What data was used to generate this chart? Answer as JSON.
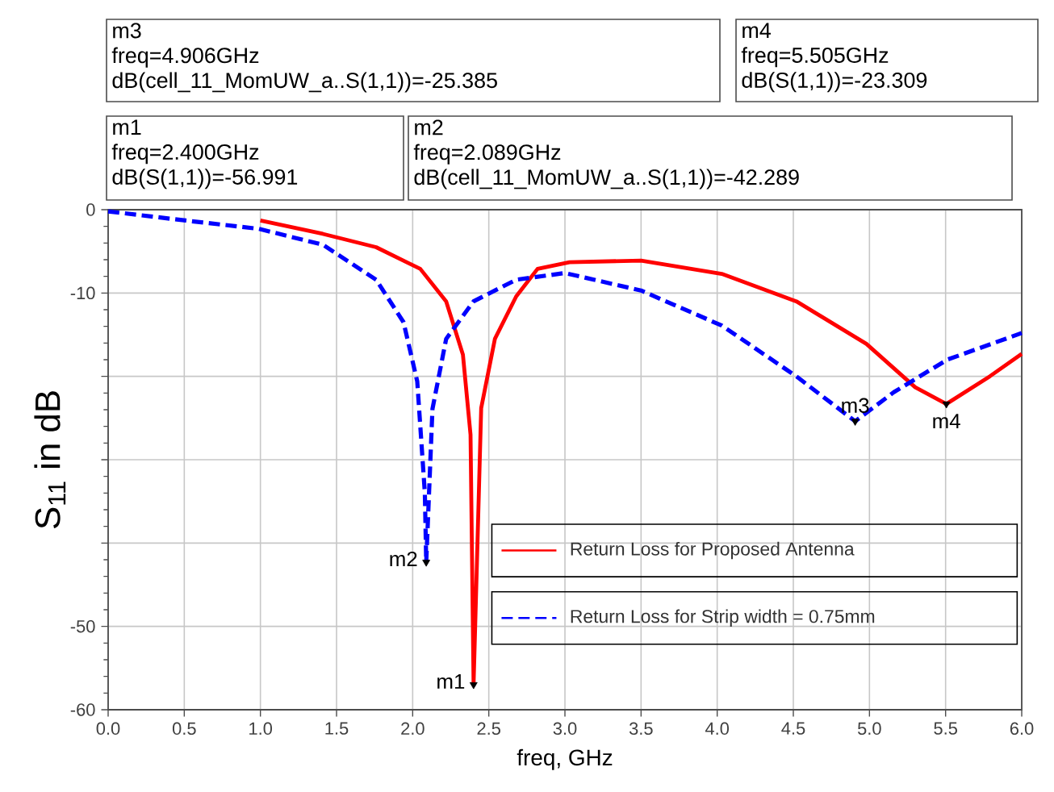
{
  "chart_data": {
    "type": "line",
    "xlabel": "freq, GHz",
    "ylabel": "S$_{11}$ in dB",
    "xlim": [
      0,
      6
    ],
    "ylim": [
      -60,
      0
    ],
    "xticks": [
      {
        "value": 0,
        "label": "0.0"
      },
      0.5,
      {
        "value": 1,
        "label": "1.0"
      },
      1.5,
      {
        "value": 2,
        "label": "2.0"
      },
      2.5,
      {
        "value": 3,
        "label": "3.0"
      },
      3.5,
      {
        "value": 4,
        "label": "4.0"
      },
      4.5,
      {
        "value": 5,
        "label": "5.0"
      },
      5.5,
      {
        "value": 6,
        "label": "6.0"
      }
    ],
    "yticks": [
      -60,
      -50,
      {
        "value": -40,
        "label": null
      },
      {
        "value": -30,
        "label": null
      },
      {
        "value": -20,
        "label": null
      },
      -10,
      0
    ],
    "grid": true,
    "legend": "bottom right",
    "marker": "none",
    "series": [
      {
        "name": "Return Loss for Proposed Antenna",
        "color": "#ff0000",
        "line_style": "solid",
        "x": [
          1.0,
          1.41,
          1.76,
          2.05,
          2.22,
          2.33,
          2.38,
          2.4,
          2.45,
          2.54,
          2.68,
          2.82,
          3.03,
          3.5,
          4.03,
          4.52,
          4.98,
          5.3,
          5.505,
          5.79,
          6.0
        ],
        "values": [
          -1.3,
          -2.9,
          -4.5,
          -7.1,
          -11,
          -17.4,
          -27,
          -56.991,
          -23.8,
          -15.5,
          -10.4,
          -7.1,
          -6.3,
          -6.1,
          -7.7,
          -11,
          -16.1,
          -21.3,
          -23.309,
          -20,
          -17.3
        ]
      },
      {
        "name": "Return Loss for Strip width = 0.75mm",
        "color": "#0000ff",
        "line_style": "dashed",
        "x": [
          0,
          0.51,
          0.99,
          1.41,
          1.76,
          1.94,
          2.03,
          2.08,
          2.089,
          2.13,
          2.22,
          2.4,
          2.68,
          3.0,
          3.5,
          4.03,
          4.52,
          4.906,
          5.16,
          5.51,
          6.0
        ],
        "values": [
          -0.2,
          -1.3,
          -2.3,
          -4.2,
          -8.4,
          -13.5,
          -20.6,
          -34,
          -42.289,
          -23.9,
          -15.5,
          -11,
          -8.4,
          -7.6,
          -9.7,
          -13.9,
          -20,
          -25.385,
          -21.9,
          -18,
          -14.8
        ]
      },
      {
        "type": "scatter",
        "color": "#000000",
        "marker": "triangle",
        "x": [
          2.4,
          2.089,
          4.906,
          5.505
        ],
        "values": [
          -56.991,
          -42.289,
          -25.385,
          -23.309
        ]
      }
    ],
    "annotations": [
      "m3",
      "freq=4.906GHz",
      "dB(cell_11_MomUW_a..S(1,1))=-25.385",
      "m4",
      "freq=5.505GHz",
      "dB(S(1,1))=-23.309",
      "m1",
      "freq=2.400GHz",
      "dB(S(1,1))=-56.991",
      "m2",
      "freq=2.089GHz",
      "dB(cell_11_MomUW_a..S(1,1))=-42.289",
      {
        "text": "m1",
        "x": 2.4,
        "y": -56.991
      },
      {
        "text": "m2",
        "x": 2.089,
        "y": -42.289
      },
      {
        "text": "m3",
        "x": 4.906,
        "y": -25.385
      },
      {
        "text": "m4",
        "x": 5.505,
        "y": -23.309
      }
    ]
  }
}
